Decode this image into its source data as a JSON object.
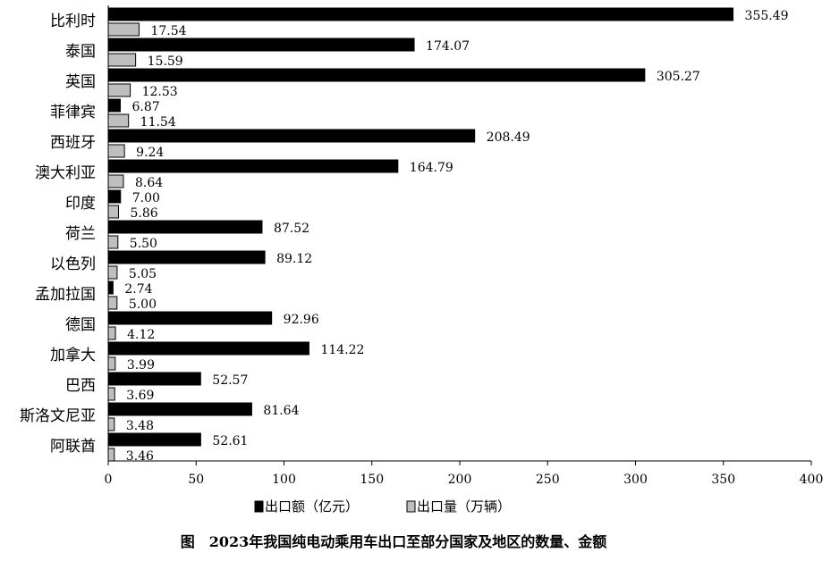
{
  "chart_data": {
    "type": "bar",
    "orientation": "horizontal",
    "title": "图　2023年我国纯电动乘用车出口至部分国家及地区的数量、金额",
    "categories": [
      "比利时",
      "泰国",
      "英国",
      "菲律宾",
      "西班牙",
      "澳大利亚",
      "印度",
      "荷兰",
      "以色列",
      "孟加拉国",
      "德国",
      "加拿大",
      "巴西",
      "斯洛文尼亚",
      "阿联酋"
    ],
    "series": [
      {
        "name": "出口额（亿元）",
        "color": "#000000",
        "values": [
          355.49,
          174.07,
          305.27,
          6.87,
          208.49,
          164.79,
          7.0,
          87.52,
          89.12,
          2.74,
          92.96,
          114.22,
          52.57,
          81.64,
          52.61
        ]
      },
      {
        "name": "出口量（万辆）",
        "color": "#bfbfbf",
        "values": [
          17.54,
          15.59,
          12.53,
          11.54,
          9.24,
          8.64,
          5.86,
          5.5,
          5.05,
          5.0,
          4.12,
          3.99,
          3.69,
          3.48,
          3.46
        ]
      }
    ],
    "xlim": [
      0,
      400
    ],
    "xticks": [
      0,
      50,
      100,
      150,
      200,
      250,
      300,
      350,
      400
    ],
    "xlabel": "",
    "ylabel": "",
    "grid": false,
    "legend_position": "bottom"
  }
}
